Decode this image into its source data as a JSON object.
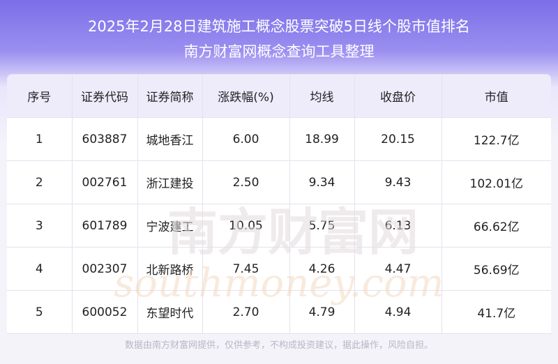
{
  "header": {
    "title": "2025年2月28日建筑施工概念股票突破5日线个股市值排名",
    "subtitle": "南方财富网概念查询工具整理"
  },
  "table": {
    "columns": [
      "序号",
      "证券代码",
      "证券简称",
      "涨跌幅(%)",
      "均线",
      "收盘价",
      "市值"
    ],
    "rows": [
      [
        "1",
        "603887",
        "城地香江",
        "6.00",
        "18.99",
        "20.15",
        "122.7亿"
      ],
      [
        "2",
        "002761",
        "浙江建投",
        "2.50",
        "9.34",
        "9.43",
        "102.01亿"
      ],
      [
        "3",
        "601789",
        "宁波建工",
        "10.05",
        "5.75",
        "6.13",
        "66.62亿"
      ],
      [
        "4",
        "002307",
        "北新路桥",
        "7.45",
        "4.26",
        "4.47",
        "56.69亿"
      ],
      [
        "5",
        "600052",
        "东望时代",
        "2.70",
        "4.79",
        "4.94",
        "41.7亿"
      ]
    ]
  },
  "watermark": {
    "name": "南方财富网",
    "site": "southmoney.com"
  },
  "footer": {
    "note": "数据由南方财富网提供，仅供参考，不构成投资建议，据此操作，风险自担。"
  }
}
